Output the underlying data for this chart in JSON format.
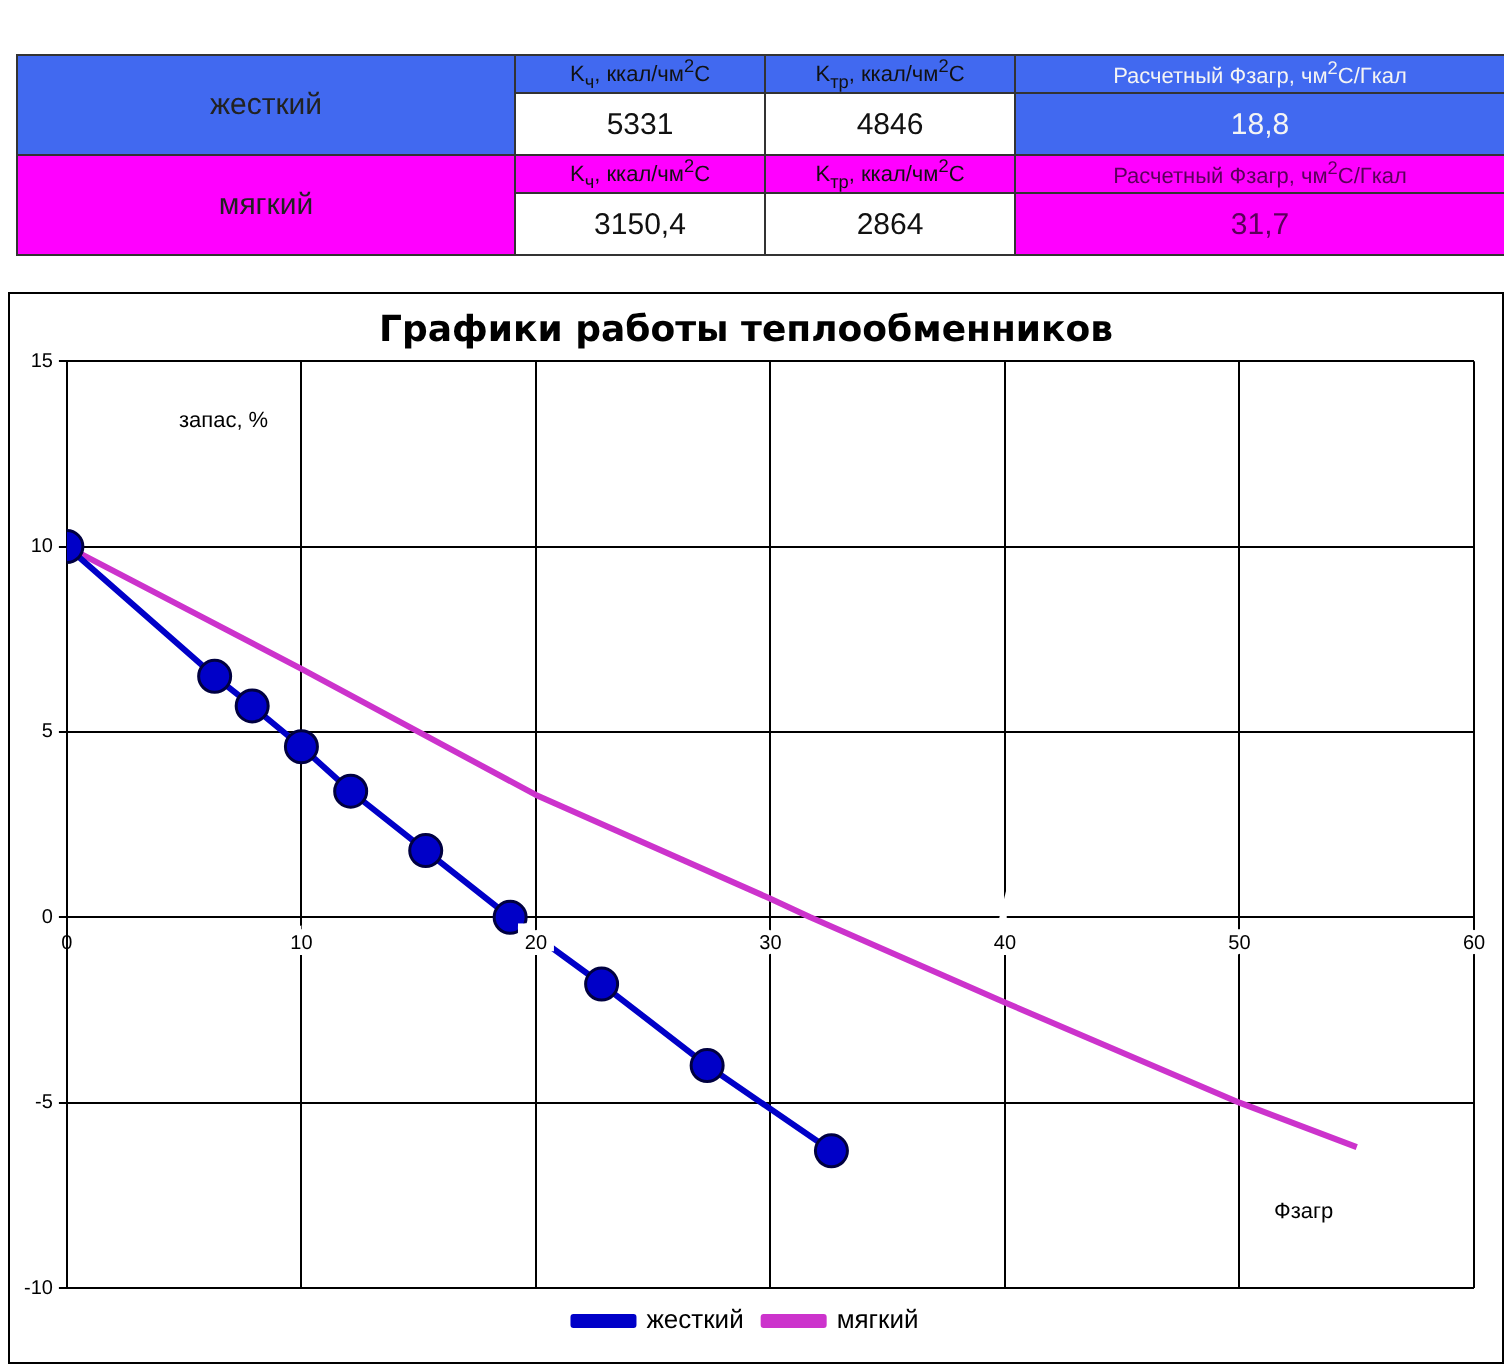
{
  "chart_data": {
    "type": "line",
    "title": "Графики работы теплообменников",
    "xlabel": "Фзагр",
    "ylabel": "запас, %",
    "annotations": [
      "жесткий",
      "K$_{ч}$, ккал/чм$^{2}$C",
      "K$_{тр}$, ккал/чм$^{2}$C",
      "Расчетный Фзагр, чм$^{2}$C/Гкал",
      "5331",
      "4846",
      "18,8",
      "мягкий",
      "K$_{ч}$, ккал/чм$^{2}$C",
      "K$_{тр}$, ккал/чм$^{2}$C",
      "Расчетный Фзагр, чм$^{2}$C/Гкал",
      "3150,4",
      "2864",
      "31,7"
    ],
    "series": [
      {
        "name": "жесткий",
        "color": "#0000c8",
        "marker": "circle",
        "x": [
          0,
          6.3,
          7.9,
          10.0,
          12.1,
          15.3,
          18.9,
          22.8,
          27.3,
          32.6
        ],
        "values": [
          10,
          6.5,
          5.7,
          4.6,
          3.4,
          1.8,
          0,
          -1.8,
          -4.0,
          -6.3
        ]
      },
      {
        "name": "мягкий",
        "color": "#cc33cc",
        "marker": "none",
        "x": [
          0,
          10,
          20,
          30,
          31.7,
          40,
          50,
          55
        ],
        "values": [
          10,
          6.7,
          3.3,
          0.5,
          0,
          -2.3,
          -5,
          -6.2
        ]
      }
    ],
    "xlim": [
      0,
      60
    ],
    "xticks": [
      0,
      10,
      20,
      30,
      40,
      50,
      60
    ],
    "ylim": [
      -10,
      15
    ],
    "yticks": [
      -10,
      -5,
      0,
      5,
      10,
      15
    ],
    "grid": true,
    "legend": "bottom"
  }
}
